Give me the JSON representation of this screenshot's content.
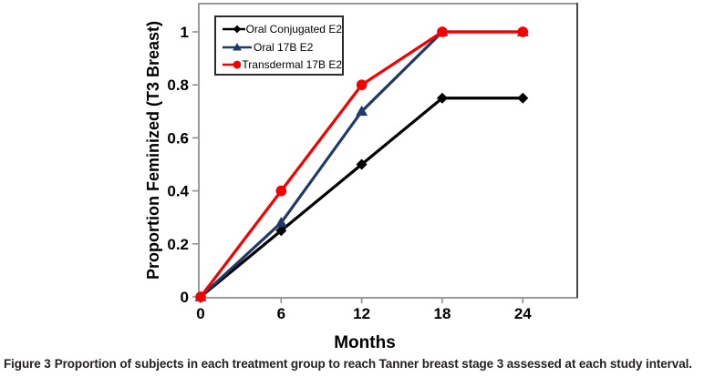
{
  "figure": {
    "caption_label": "Figure 3",
    "caption_body": "Proportion of subjects in each treatment group to reach Tanner breast stage 3 assessed at each study interval."
  },
  "chart_data": {
    "type": "line",
    "title": "",
    "xlabel": "Months",
    "ylabel": "Proportion Feminized (T3 Breast)",
    "x": [
      0,
      6,
      12,
      18,
      24
    ],
    "xtick_labels": [
      "0",
      "6",
      "12",
      "18",
      "24"
    ],
    "ytick_values": [
      0,
      0.2,
      0.4,
      0.6,
      0.8,
      1
    ],
    "ytick_labels": [
      "0",
      "0.2",
      "0.4",
      "0.6",
      "0.8",
      "1"
    ],
    "xlim": [
      0,
      28
    ],
    "ylim": [
      0,
      1.1
    ],
    "grid": false,
    "legend_position": "top-left-inside",
    "series": [
      {
        "name": "Oral Conjugated E2",
        "color": "#000000",
        "marker": "diamond",
        "values": [
          0,
          0.25,
          0.5,
          0.75,
          0.75
        ]
      },
      {
        "name": "Oral 17B E2",
        "color": "#1f3a68",
        "marker": "triangle",
        "values": [
          0,
          0.28,
          0.7,
          1,
          1
        ]
      },
      {
        "name": "Transdermal 17B E2",
        "color": "#f40000",
        "marker": "circle",
        "values": [
          0,
          0.4,
          0.8,
          1,
          1
        ]
      }
    ]
  },
  "style": {
    "axis_color": "#8f8f8f",
    "right_border_color": "#474747",
    "legend_border_color": "#2b2b2b",
    "caption_color": "#231f20",
    "background": "#ffffff"
  }
}
